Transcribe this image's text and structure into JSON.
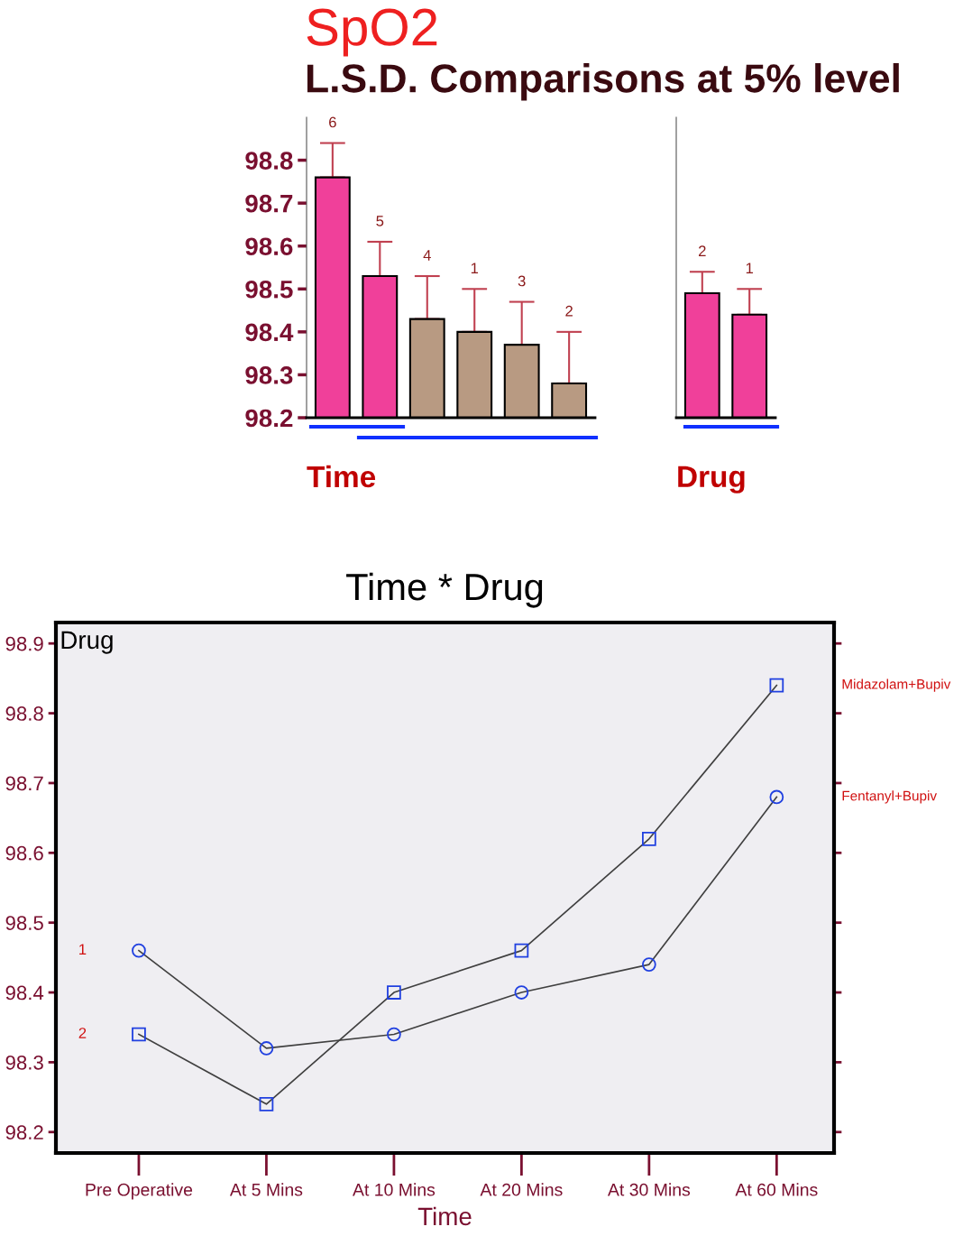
{
  "chart_data": [
    {
      "type": "bar",
      "title": "SpO2",
      "subtitle": "L.S.D. Comparisons at 5% level",
      "xlabel": "Time",
      "categories": [
        "6",
        "5",
        "4",
        "1",
        "3",
        "2"
      ],
      "values": [
        98.76,
        98.53,
        98.43,
        98.4,
        98.37,
        98.28
      ],
      "colors": [
        "#f0409a",
        "#f0409a",
        "#b89a82",
        "#b89a82",
        "#b89a82",
        "#b89a82"
      ],
      "errors": [
        [
          98.76,
          98.84
        ],
        [
          98.53,
          98.61
        ],
        [
          98.43,
          98.53
        ],
        [
          98.4,
          98.5
        ],
        [
          98.37,
          98.47
        ],
        [
          98.28,
          98.4
        ]
      ],
      "ylim": [
        98.2,
        98.9
      ],
      "yticks": [
        98.2,
        98.3,
        98.4,
        98.5,
        98.6,
        98.7,
        98.8
      ],
      "tick_labels": "y",
      "grid": false
    },
    {
      "type": "bar",
      "xlabel": "Drug",
      "categories": [
        "2",
        "1"
      ],
      "values": [
        98.49,
        98.44
      ],
      "colors": [
        "#f0409a",
        "#f0409a"
      ],
      "errors": [
        [
          98.49,
          98.54
        ],
        [
          98.44,
          98.5
        ]
      ],
      "ylim": [
        98.2,
        98.9
      ],
      "tick_labels": false,
      "grid": false
    },
    {
      "type": "line",
      "title": "Time * Drug",
      "xlabel": "Time",
      "legend_title": "Drug",
      "categories": [
        "Pre Operative",
        "At 5 Mins",
        "At 10 Mins",
        "At 20 Mins",
        "At 30 Mins",
        "At 60 Mins"
      ],
      "series": [
        {
          "name": "Midazolam+Bupiv",
          "color": "#404040",
          "marker": "square",
          "values": [
            98.34,
            98.24,
            98.4,
            98.46,
            98.62,
            98.84
          ]
        },
        {
          "name": "Fentanyl+Bupiv",
          "color": "#404040",
          "marker": "circle",
          "values": [
            98.46,
            98.32,
            98.34,
            98.4,
            98.44,
            98.68
          ]
        }
      ],
      "annotations": [
        "1",
        "2"
      ],
      "ylim": [
        98.17,
        98.93
      ],
      "yticks": [
        98.2,
        98.3,
        98.4,
        98.5,
        98.6,
        98.7,
        98.8,
        98.9
      ],
      "grid": false,
      "line_style": "solid"
    }
  ]
}
